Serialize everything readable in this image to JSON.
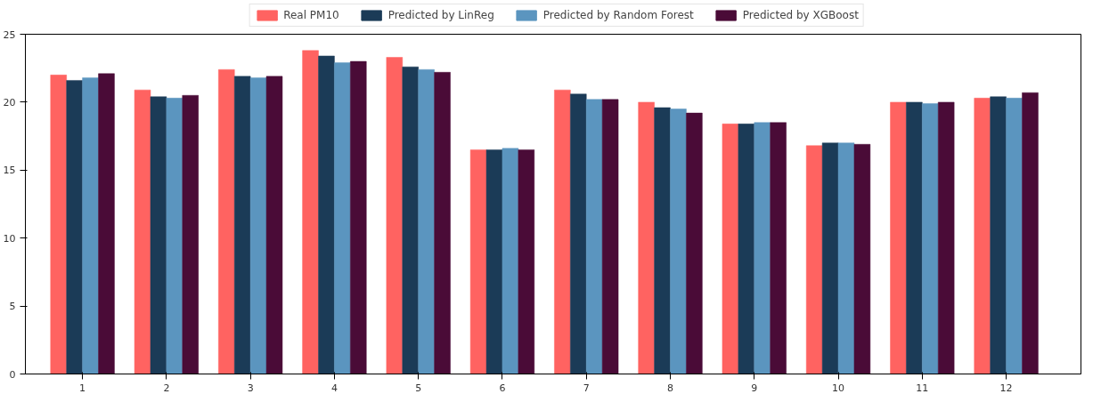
{
  "chart_data": {
    "type": "bar",
    "categories": [
      "1",
      "2",
      "3",
      "4",
      "5",
      "6",
      "7",
      "8",
      "9",
      "10",
      "11",
      "12"
    ],
    "series": [
      {
        "name": "Real PM10",
        "color": "#ff6361",
        "values": [
          22.0,
          20.9,
          22.4,
          23.8,
          23.3,
          16.5,
          20.9,
          20.0,
          18.4,
          16.8,
          20.0,
          20.3
        ]
      },
      {
        "name": "Predicted by LinReg",
        "color": "#1b3b57",
        "values": [
          21.6,
          20.4,
          21.9,
          23.4,
          22.6,
          16.5,
          20.6,
          19.6,
          18.4,
          17.0,
          20.0,
          20.4
        ]
      },
      {
        "name": "Predicted by Random Forest",
        "color": "#5b95bf",
        "values": [
          21.8,
          20.3,
          21.8,
          22.9,
          22.4,
          16.6,
          20.2,
          19.5,
          18.5,
          17.0,
          19.9,
          20.3
        ]
      },
      {
        "name": "Predicted by XGBoost",
        "color": "#4a0b37",
        "values": [
          22.1,
          20.5,
          21.9,
          23.0,
          22.2,
          16.5,
          20.2,
          19.2,
          18.5,
          16.9,
          20.0,
          20.7
        ]
      }
    ],
    "ylim": [
      0,
      25
    ],
    "yticks": [
      0,
      5,
      10,
      15,
      20,
      25
    ],
    "grid": false,
    "legend": "top"
  }
}
